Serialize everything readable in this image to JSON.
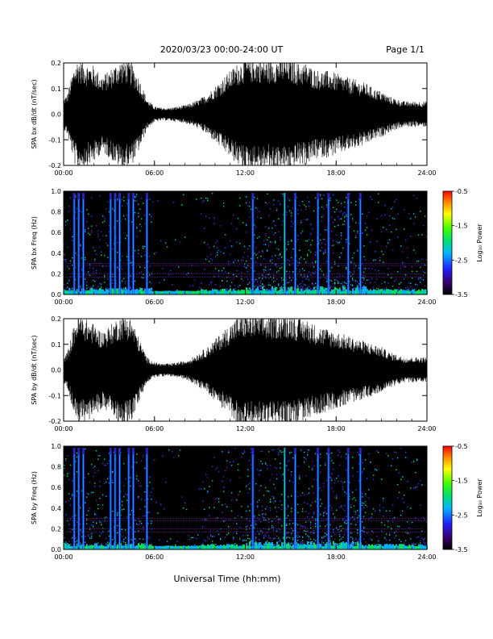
{
  "header": {
    "title": "2020/03/23  00:00-24:00 UT",
    "page": "Page 1/1"
  },
  "xlabel": "Universal Time (hh:mm)",
  "chart_data": [
    {
      "type": "line",
      "panel": "bx-waveform",
      "ylabel": "SPA bx dB/dt (nT/sec)",
      "xlim": [
        0,
        24
      ],
      "ylim": [
        -0.2,
        0.2
      ],
      "x_ticks": [
        "00:00",
        "06:00",
        "12:00",
        "18:00",
        "24:00"
      ],
      "y_ticks": [
        "0.2",
        "0.1",
        "0.0",
        "-0.1",
        "-0.2"
      ],
      "envelope": {
        "hours": [
          0,
          0.25,
          0.5,
          0.75,
          1,
          1.5,
          2,
          2.5,
          3,
          3.5,
          4,
          4.5,
          5,
          5.5,
          6,
          6.5,
          7,
          7.5,
          8,
          8.5,
          9,
          9.5,
          10,
          10.5,
          11,
          11.5,
          12,
          12.5,
          13,
          13.5,
          14,
          14.5,
          15,
          15.5,
          16,
          16.5,
          17,
          17.5,
          18,
          18.5,
          19,
          19.5,
          20,
          20.5,
          21,
          21.5,
          22,
          22.5,
          23,
          23.5,
          24
        ],
        "amplitude": [
          0.06,
          0.08,
          0.14,
          0.2,
          0.22,
          0.2,
          0.19,
          0.15,
          0.17,
          0.2,
          0.22,
          0.2,
          0.14,
          0.06,
          0.03,
          0.025,
          0.025,
          0.03,
          0.035,
          0.045,
          0.06,
          0.08,
          0.11,
          0.14,
          0.17,
          0.2,
          0.22,
          0.22,
          0.22,
          0.21,
          0.22,
          0.22,
          0.22,
          0.2,
          0.2,
          0.18,
          0.17,
          0.17,
          0.16,
          0.15,
          0.14,
          0.13,
          0.12,
          0.1,
          0.09,
          0.07,
          0.06,
          0.05,
          0.05,
          0.05,
          0.05
        ]
      }
    },
    {
      "type": "heatmap",
      "panel": "bx-spectrogram",
      "ylabel": "SPA bx Freq (Hz)",
      "xlim": [
        0,
        24
      ],
      "ylim": [
        0,
        1.0
      ],
      "x_ticks": [
        "00:00",
        "06:00",
        "12:00",
        "18:00",
        "24:00"
      ],
      "y_ticks": [
        "1.0",
        "0.8",
        "0.6",
        "0.4",
        "0.2",
        "0.0"
      ],
      "colorbar": {
        "label": "Log₁₀ Power",
        "range": [
          -3.5,
          -0.5
        ],
        "ticks": [
          "-0.5",
          "-1.5",
          "-2.5",
          "-3.5"
        ]
      },
      "vertical_bursts_hours": [
        0.7,
        1.0,
        1.3,
        3.1,
        3.4,
        3.7,
        4.3,
        4.6,
        5.5,
        12.5,
        14.6,
        15.3,
        16.8,
        17.5,
        18.8,
        19.6
      ],
      "horizontal_lines_hz": [
        0.3,
        0.28,
        0.2,
        0.17
      ]
    },
    {
      "type": "line",
      "panel": "by-waveform",
      "ylabel": "SPA by dB/dt (nT/sec)",
      "xlim": [
        0,
        24
      ],
      "ylim": [
        -0.2,
        0.2
      ],
      "x_ticks": [
        "00:00",
        "06:00",
        "12:00",
        "18:00",
        "24:00"
      ],
      "y_ticks": [
        "0.2",
        "0.1",
        "0.0",
        "-0.1",
        "-0.2"
      ],
      "envelope": {
        "hours": [
          0,
          0.25,
          0.5,
          0.75,
          1,
          1.5,
          2,
          2.5,
          3,
          3.5,
          4,
          4.5,
          5,
          5.5,
          6,
          6.5,
          7,
          7.5,
          8,
          8.5,
          9,
          9.5,
          10,
          10.5,
          11,
          11.5,
          12,
          12.5,
          13,
          13.5,
          14,
          14.5,
          15,
          15.5,
          16,
          16.5,
          17,
          17.5,
          18,
          18.5,
          19,
          19.5,
          20,
          20.5,
          21,
          21.5,
          22,
          22.5,
          23,
          23.5,
          24
        ],
        "amplitude": [
          0.05,
          0.07,
          0.13,
          0.19,
          0.22,
          0.2,
          0.18,
          0.15,
          0.17,
          0.2,
          0.22,
          0.2,
          0.12,
          0.05,
          0.03,
          0.025,
          0.025,
          0.03,
          0.035,
          0.05,
          0.07,
          0.09,
          0.12,
          0.15,
          0.18,
          0.21,
          0.22,
          0.22,
          0.22,
          0.21,
          0.22,
          0.22,
          0.22,
          0.2,
          0.2,
          0.18,
          0.17,
          0.16,
          0.15,
          0.14,
          0.13,
          0.12,
          0.11,
          0.1,
          0.09,
          0.07,
          0.06,
          0.05,
          0.05,
          0.05,
          0.05
        ]
      }
    },
    {
      "type": "heatmap",
      "panel": "by-spectrogram",
      "ylabel": "SPA by Freq (Hz)",
      "xlim": [
        0,
        24
      ],
      "ylim": [
        0,
        1.0
      ],
      "x_ticks": [
        "00:00",
        "06:00",
        "12:00",
        "18:00",
        "24:00"
      ],
      "y_ticks": [
        "1.0",
        "0.8",
        "0.6",
        "0.4",
        "0.2",
        "0.0"
      ],
      "colorbar": {
        "label": "Log₁₀ Power",
        "range": [
          -3.5,
          -0.5
        ],
        "ticks": [
          "-0.5",
          "-1.5",
          "-2.5",
          "-3.5"
        ]
      },
      "vertical_bursts_hours": [
        0.7,
        1.0,
        1.3,
        3.1,
        3.4,
        3.7,
        4.3,
        4.6,
        5.5,
        12.5,
        14.6,
        15.3,
        16.8,
        17.5,
        18.8,
        19.6
      ],
      "horizontal_lines_hz": [
        0.3,
        0.28,
        0.2,
        0.17
      ]
    }
  ]
}
